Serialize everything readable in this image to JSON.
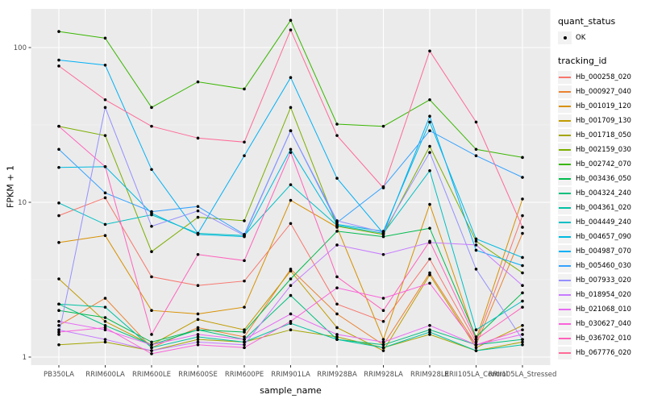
{
  "chart": {
    "panel_background": "#EBEBEB",
    "grid_major_color": "#FFFFFF",
    "grid_minor_opacity": 0.55,
    "point_color": "#000000",
    "tick_color": "#333333",
    "tick_label_color": "#4D4D4D",
    "x_axis_title": "sample_name",
    "y_axis_title": "FPKM + 1",
    "legend_quant_title": "quant_status",
    "legend_quant_items": [
      {
        "label": "OK",
        "symbol": "point"
      }
    ],
    "legend_tracking_title": "tracking_id"
  },
  "chart_data": {
    "type": "line",
    "title": "",
    "xlabel": "sample_name",
    "ylabel": "FPKM + 1",
    "y_scale": "log10",
    "y_ticks": [
      1,
      10,
      100
    ],
    "y_tick_labels": [
      "1",
      "10",
      "100"
    ],
    "y_minor_ticks": [
      3.1623,
      31.623
    ],
    "ylim": [
      0.89,
      178
    ],
    "grid": true,
    "legend_position": "right",
    "point_shape": "filled-circle-black",
    "categories": [
      "PB350LA",
      "RRIM600LA",
      "RRIM600LE",
      "RRIM600SE",
      "RRIM600PE",
      "RRIM901LA",
      "RRIM928BA",
      "RRIM928LA",
      "RRIM928LE",
      "RRII105LA_Control",
      "RRII105LA_Stressed"
    ],
    "series": [
      {
        "name": "Hb_000258_020",
        "color": "#F8766D",
        "values": [
          8.2,
          10.7,
          3.3,
          2.9,
          3.1,
          7.3,
          2.2,
          1.7,
          4.3,
          1.25,
          8.2
        ]
      },
      {
        "name": "Hb_000927_040",
        "color": "#EA8331",
        "values": [
          1.6,
          2.4,
          1.15,
          1.55,
          1.35,
          3.7,
          1.9,
          1.2,
          3.5,
          1.2,
          6.3
        ]
      },
      {
        "name": "Hb_001019_120",
        "color": "#D89000",
        "values": [
          5.5,
          6.1,
          2.0,
          1.9,
          2.1,
          10.3,
          6.9,
          1.3,
          9.7,
          1.3,
          10.5
        ]
      },
      {
        "name": "Hb_001709_130",
        "color": "#C09B00",
        "values": [
          3.2,
          1.7,
          1.2,
          1.75,
          1.5,
          3.6,
          1.55,
          1.1,
          3.4,
          1.15,
          1.6
        ]
      },
      {
        "name": "Hb_001718_050",
        "color": "#A3A500",
        "values": [
          1.2,
          1.25,
          1.1,
          1.3,
          1.25,
          1.5,
          1.35,
          1.15,
          1.4,
          1.1,
          1.25
        ]
      },
      {
        "name": "Hb_002159_030",
        "color": "#7CAE00",
        "values": [
          31,
          27,
          4.8,
          8.0,
          7.6,
          41,
          7.0,
          6.2,
          23,
          5.6,
          3.5
        ]
      },
      {
        "name": "Hb_002742_070",
        "color": "#39B600",
        "values": [
          127,
          115,
          41,
          60,
          54,
          150,
          32,
          31,
          46,
          22,
          19.5
        ]
      },
      {
        "name": "Hb_003436_050",
        "color": "#00BB4E",
        "values": [
          2.0,
          1.8,
          1.25,
          1.5,
          1.45,
          3.2,
          6.5,
          6.0,
          6.8,
          1.35,
          2.6
        ]
      },
      {
        "name": "Hb_004324_240",
        "color": "#00BF7D",
        "values": [
          2.2,
          1.6,
          1.2,
          1.5,
          1.3,
          2.5,
          1.3,
          1.2,
          1.5,
          1.2,
          1.3
        ]
      },
      {
        "name": "Hb_004361_020",
        "color": "#00C1A3",
        "values": [
          2.2,
          2.1,
          1.15,
          1.35,
          1.25,
          1.65,
          1.3,
          1.15,
          1.45,
          1.1,
          1.2
        ]
      },
      {
        "name": "Hb_004449_240",
        "color": "#00BFC4",
        "values": [
          9.9,
          7.2,
          8.3,
          6.3,
          6.1,
          13,
          7.1,
          6.3,
          16,
          1.5,
          2.3
        ]
      },
      {
        "name": "Hb_004657_090",
        "color": "#00BAE0",
        "values": [
          16.8,
          17,
          8.5,
          6.2,
          6.0,
          22,
          7.2,
          6.5,
          33,
          5.8,
          4.4
        ]
      },
      {
        "name": "Hb_004987_070",
        "color": "#00B0F6",
        "values": [
          83,
          77,
          16.3,
          6.3,
          20,
          64,
          14.3,
          6.3,
          36,
          4.9,
          3.9
        ]
      },
      {
        "name": "Hb_005460_030",
        "color": "#35A2FF",
        "values": [
          22,
          11.5,
          8.7,
          9.4,
          6.2,
          29,
          7.4,
          12.6,
          29,
          20,
          14.5
        ]
      },
      {
        "name": "Hb_007933_020",
        "color": "#9590FF",
        "values": [
          1.4,
          41,
          7.0,
          8.8,
          6.1,
          29,
          7.6,
          6.4,
          21,
          3.7,
          1.3
        ]
      },
      {
        "name": "Hb_018954_020",
        "color": "#C77CFF",
        "values": [
          1.5,
          1.3,
          1.1,
          1.25,
          1.2,
          2.9,
          5.3,
          4.6,
          5.5,
          5.3,
          2.9
        ]
      },
      {
        "name": "Hb_021068_010",
        "color": "#E76BF3",
        "values": [
          1.7,
          1.5,
          1.2,
          1.4,
          1.3,
          1.9,
          1.4,
          1.25,
          1.6,
          1.2,
          1.4
        ]
      },
      {
        "name": "Hb_030627_040",
        "color": "#FA62DB",
        "values": [
          1.45,
          1.55,
          1.05,
          1.2,
          1.15,
          1.7,
          2.8,
          2.4,
          3.0,
          1.2,
          1.5
        ]
      },
      {
        "name": "Hb_036702_010",
        "color": "#FF62BC",
        "values": [
          31,
          17,
          1.4,
          4.6,
          4.2,
          21,
          3.3,
          2.0,
          5.6,
          1.3,
          2.1
        ]
      },
      {
        "name": "Hb_067776_020",
        "color": "#FF6A98",
        "values": [
          76,
          46,
          31,
          26,
          24.5,
          130,
          27,
          12.4,
          95,
          33,
          6.9
        ]
      }
    ]
  }
}
